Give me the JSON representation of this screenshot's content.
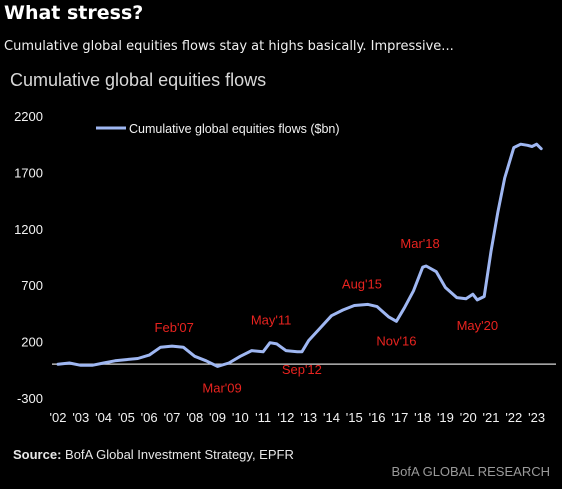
{
  "headline": "What stress?",
  "subheadline": "Cumulative global equities flows stay at highs basically. Impressive...",
  "chart_data": {
    "type": "line",
    "title": "Cumulative global equities flows",
    "xlabel": "",
    "ylabel": "",
    "ylim": [
      -300,
      2200
    ],
    "yticks": [
      -300,
      200,
      700,
      1200,
      1700,
      2200
    ],
    "xlim": [
      2002,
      2023.5
    ],
    "xticks": [
      "'02",
      "'03",
      "'04",
      "'05",
      "'06",
      "'07",
      "'08",
      "'09",
      "'10",
      "'11",
      "'12",
      "'13",
      "'14",
      "'15",
      "'16",
      "'17",
      "'18",
      "'19",
      "'20",
      "'21",
      "'22",
      "'23"
    ],
    "grid": false,
    "legend_position": "top-left",
    "line_color": "#9fb7f2",
    "annotation_color": "#e8231f",
    "series": [
      {
        "name": "Cumulative global equities flows ($bn)",
        "x": [
          2002.0,
          2002.5,
          2003.0,
          2003.5,
          2004.0,
          2004.5,
          2005.0,
          2005.5,
          2006.0,
          2006.5,
          2007.0,
          2007.5,
          2008.0,
          2008.5,
          2009.0,
          2009.5,
          2010.0,
          2010.5,
          2011.0,
          2011.3,
          2011.6,
          2012.0,
          2012.5,
          2012.7,
          2013.0,
          2013.5,
          2014.0,
          2014.5,
          2015.0,
          2015.6,
          2016.0,
          2016.5,
          2016.85,
          2017.2,
          2017.6,
          2018.0,
          2018.15,
          2018.6,
          2019.0,
          2019.5,
          2019.9,
          2020.2,
          2020.4,
          2020.7,
          2021.0,
          2021.3,
          2021.6,
          2022.0,
          2022.3,
          2022.6,
          2022.8,
          2023.0,
          2023.2
        ],
        "y": [
          0,
          10,
          -10,
          -10,
          10,
          30,
          40,
          50,
          80,
          150,
          160,
          150,
          70,
          30,
          -20,
          10,
          70,
          120,
          110,
          190,
          180,
          120,
          110,
          110,
          210,
          320,
          430,
          480,
          520,
          530,
          510,
          420,
          380,
          500,
          650,
          860,
          870,
          820,
          680,
          590,
          580,
          620,
          570,
          600,
          1000,
          1350,
          1650,
          1920,
          1950,
          1940,
          1930,
          1950,
          1910
        ]
      }
    ],
    "annotations": [
      {
        "text": "Feb'07",
        "x": 2007.1,
        "y": 160
      },
      {
        "text": "Mar'09",
        "x": 2009.2,
        "y": -20
      },
      {
        "text": "May'11",
        "x": 2011.35,
        "y": 190
      },
      {
        "text": "Sep'12",
        "x": 2012.7,
        "y": 110
      },
      {
        "text": "Aug'15",
        "x": 2015.6,
        "y": 530
      },
      {
        "text": "Nov'16",
        "x": 2016.85,
        "y": 380
      },
      {
        "text": "Mar'18",
        "x": 2018.15,
        "y": 870
      },
      {
        "text": "May'20",
        "x": 2020.4,
        "y": 570
      }
    ]
  },
  "footer": {
    "source_label": "Source:",
    "source_text": "BofA Global Investment Strategy, EPFR",
    "brand": "BofA GLOBAL RESEARCH"
  }
}
